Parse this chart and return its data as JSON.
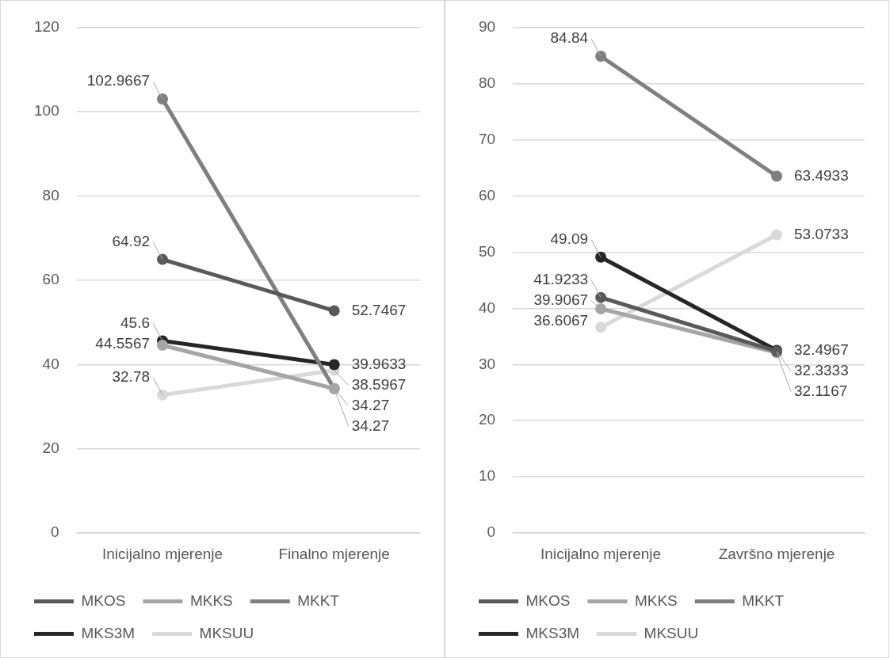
{
  "chart_data": [
    {
      "type": "line",
      "categories": [
        "Inicijalno mjerenje",
        "Finalno mjerenje"
      ],
      "series": [
        {
          "name": "MKOS",
          "color": "#595959",
          "values": [
            64.92,
            52.7467
          ]
        },
        {
          "name": "MKKS",
          "color": "#a5a5a5",
          "values": [
            44.5567,
            34.27
          ]
        },
        {
          "name": "MKKT",
          "color": "#7f7f7f",
          "values": [
            102.9667,
            34.27
          ]
        },
        {
          "name": "MKS3M",
          "color": "#262626",
          "values": [
            45.6,
            39.9633
          ]
        },
        {
          "name": "MKSUU",
          "color": "#d9d9d9",
          "values": [
            32.78,
            38.5967
          ]
        }
      ],
      "ylim": [
        0,
        120
      ],
      "yticks": [
        0,
        20,
        40,
        60,
        80,
        100,
        120
      ],
      "grid": "y",
      "legend": "bottom",
      "marker": "circle",
      "data_labels": true
    },
    {
      "type": "line",
      "categories": [
        "Inicijalno mjerenje",
        "Završno mjerenje"
      ],
      "series": [
        {
          "name": "MKOS",
          "color": "#595959",
          "values": [
            41.9233,
            32.3333
          ]
        },
        {
          "name": "MKKS",
          "color": "#a5a5a5",
          "values": [
            39.9067,
            32.1167
          ]
        },
        {
          "name": "MKKT",
          "color": "#7f7f7f",
          "values": [
            84.84,
            63.4933
          ]
        },
        {
          "name": "MKS3M",
          "color": "#262626",
          "values": [
            49.09,
            32.4967
          ]
        },
        {
          "name": "MKSUU",
          "color": "#d9d9d9",
          "values": [
            36.6067,
            53.0733
          ]
        }
      ],
      "ylim": [
        0,
        90
      ],
      "yticks": [
        0,
        10,
        20,
        30,
        40,
        50,
        60,
        70,
        80,
        90
      ],
      "grid": "y",
      "legend": "bottom",
      "marker": "circle",
      "data_labels": true
    }
  ]
}
